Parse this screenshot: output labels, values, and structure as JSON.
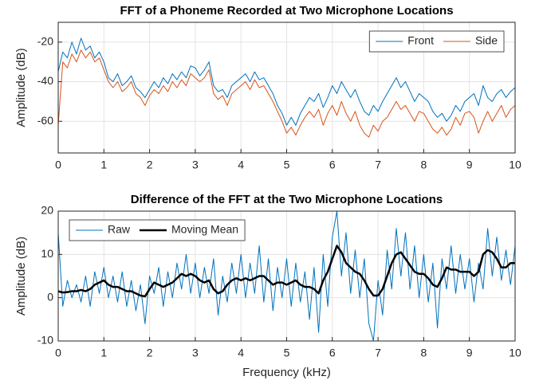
{
  "chart_data": [
    {
      "type": "line",
      "title": "FFT of a Phoneme Recorded at Two Microphone Locations",
      "y_label": "Amplitude (dB)",
      "x": [
        0,
        0.1,
        0.2,
        0.3,
        0.4,
        0.5,
        0.6,
        0.7,
        0.8,
        0.9,
        1,
        1.1,
        1.2,
        1.3,
        1.4,
        1.5,
        1.6,
        1.7,
        1.8,
        1.9,
        2,
        2.1,
        2.2,
        2.3,
        2.4,
        2.5,
        2.6,
        2.7,
        2.8,
        2.9,
        3,
        3.1,
        3.2,
        3.3,
        3.4,
        3.5,
        3.6,
        3.7,
        3.8,
        3.9,
        4,
        4.1,
        4.2,
        4.3,
        4.4,
        4.5,
        4.6,
        4.7,
        4.8,
        4.9,
        5,
        5.1,
        5.2,
        5.3,
        5.4,
        5.5,
        5.6,
        5.7,
        5.8,
        5.9,
        6,
        6.1,
        6.2,
        6.3,
        6.4,
        6.5,
        6.6,
        6.7,
        6.8,
        6.9,
        7,
        7.1,
        7.2,
        7.3,
        7.4,
        7.5,
        7.6,
        7.7,
        7.8,
        7.9,
        8,
        8.1,
        8.2,
        8.3,
        8.4,
        8.5,
        8.6,
        8.7,
        8.8,
        8.9,
        9,
        9.1,
        9.2,
        9.3,
        9.4,
        9.5,
        9.6,
        9.7,
        9.8,
        9.9,
        10
      ],
      "series": [
        {
          "name": "Front",
          "color": "#0072bd",
          "values": [
            -35,
            -25,
            -28,
            -20,
            -26,
            -18,
            -24,
            -22,
            -28,
            -25,
            -30,
            -38,
            -40,
            -36,
            -42,
            -40,
            -37,
            -43,
            -45,
            -48,
            -44,
            -40,
            -43,
            -38,
            -41,
            -36,
            -39,
            -35,
            -38,
            -32,
            -33,
            -37,
            -34,
            -30,
            -42,
            -45,
            -44,
            -48,
            -42,
            -40,
            -38,
            -36,
            -40,
            -35,
            -39,
            -38,
            -42,
            -46,
            -52,
            -56,
            -62,
            -58,
            -62,
            -56,
            -52,
            -48,
            -50,
            -46,
            -53,
            -48,
            -42,
            -46,
            -40,
            -44,
            -48,
            -44,
            -50,
            -55,
            -57,
            -52,
            -55,
            -50,
            -46,
            -42,
            -38,
            -43,
            -40,
            -45,
            -50,
            -46,
            -48,
            -50,
            -55,
            -58,
            -56,
            -60,
            -57,
            -52,
            -55,
            -50,
            -48,
            -46,
            -52,
            -42,
            -48,
            -50,
            -46,
            -44,
            -48,
            -45,
            -43
          ]
        },
        {
          "name": "Side",
          "color": "#d95319",
          "values": [
            -62,
            -30,
            -33,
            -26,
            -30,
            -24,
            -28,
            -25,
            -30,
            -28,
            -34,
            -40,
            -43,
            -40,
            -45,
            -43,
            -40,
            -46,
            -48,
            -52,
            -47,
            -44,
            -46,
            -42,
            -45,
            -40,
            -43,
            -39,
            -42,
            -36,
            -38,
            -40,
            -38,
            -34,
            -46,
            -49,
            -47,
            -52,
            -46,
            -44,
            -42,
            -40,
            -44,
            -39,
            -43,
            -42,
            -46,
            -50,
            -55,
            -60,
            -66,
            -63,
            -67,
            -62,
            -58,
            -55,
            -58,
            -54,
            -62,
            -56,
            -52,
            -57,
            -50,
            -56,
            -60,
            -55,
            -62,
            -66,
            -68,
            -62,
            -65,
            -60,
            -58,
            -54,
            -50,
            -54,
            -52,
            -56,
            -60,
            -55,
            -56,
            -60,
            -64,
            -66,
            -63,
            -67,
            -64,
            -58,
            -62,
            -56,
            -55,
            -58,
            -66,
            -60,
            -55,
            -60,
            -56,
            -52,
            -58,
            -54,
            -52
          ]
        }
      ],
      "xlim": [
        0,
        10
      ],
      "xticks": [
        0,
        1,
        2,
        3,
        4,
        5,
        6,
        7,
        8,
        9,
        10
      ],
      "ylim": [
        -76,
        -10
      ],
      "yticks": [
        -60,
        -40,
        -20
      ],
      "grid": true,
      "legend": "northeast"
    },
    {
      "type": "line",
      "title": "Difference of the FFT at the Two Microphone Locations",
      "x_label": "Frequency (kHz)",
      "y_label": "Amplitude (dB)",
      "x": [
        0,
        0.1,
        0.2,
        0.3,
        0.4,
        0.5,
        0.6,
        0.7,
        0.8,
        0.9,
        1,
        1.1,
        1.2,
        1.3,
        1.4,
        1.5,
        1.6,
        1.7,
        1.8,
        1.9,
        2,
        2.1,
        2.2,
        2.3,
        2.4,
        2.5,
        2.6,
        2.7,
        2.8,
        2.9,
        3,
        3.1,
        3.2,
        3.3,
        3.4,
        3.5,
        3.6,
        3.7,
        3.8,
        3.9,
        4,
        4.1,
        4.2,
        4.3,
        4.4,
        4.5,
        4.6,
        4.7,
        4.8,
        4.9,
        5,
        5.1,
        5.2,
        5.3,
        5.4,
        5.5,
        5.6,
        5.7,
        5.8,
        5.9,
        6,
        6.1,
        6.2,
        6.3,
        6.4,
        6.5,
        6.6,
        6.7,
        6.8,
        6.9,
        7,
        7.1,
        7.2,
        7.3,
        7.4,
        7.5,
        7.6,
        7.7,
        7.8,
        7.9,
        8,
        8.1,
        8.2,
        8.3,
        8.4,
        8.5,
        8.6,
        8.7,
        8.8,
        8.9,
        9,
        9.1,
        9.2,
        9.3,
        9.4,
        9.5,
        9.6,
        9.7,
        9.8,
        9.9,
        10
      ],
      "series": [
        {
          "name": "Raw",
          "color": "#0072bd",
          "width": 1,
          "values": [
            15,
            -2,
            4,
            0,
            3,
            -1,
            5,
            -2,
            6,
            1,
            7,
            0,
            5,
            -1,
            6,
            -2,
            4,
            -3,
            3,
            -6,
            5,
            1,
            7,
            -2,
            6,
            0,
            8,
            2,
            10,
            1,
            8,
            0,
            7,
            1,
            9,
            -4,
            5,
            -1,
            8,
            1,
            10,
            0,
            8,
            1,
            12,
            -1,
            9,
            -3,
            7,
            0,
            9,
            -2,
            8,
            -1,
            6,
            -5,
            7,
            -8,
            10,
            -2,
            14,
            20,
            5,
            15,
            1,
            11,
            0,
            9,
            -6,
            -10,
            4,
            -4,
            11,
            2,
            16,
            5,
            15,
            2,
            12,
            0,
            10,
            -1,
            8,
            -7,
            9,
            2,
            12,
            1,
            10,
            2,
            9,
            -1,
            8,
            2,
            16,
            5,
            14,
            4,
            11,
            3,
            12
          ]
        },
        {
          "name": "Moving Mean",
          "color": "#000000",
          "width": 2.5,
          "values": [
            1.5,
            1.2,
            1.3,
            1.5,
            1.5,
            1.8,
            1.5,
            2,
            3,
            3.5,
            4,
            3,
            2.5,
            2.5,
            2,
            1.5,
            1.5,
            1,
            0.5,
            0.3,
            2,
            3.5,
            3,
            2.5,
            3,
            3.5,
            4.5,
            5.5,
            5,
            5.5,
            5,
            4,
            3.5,
            4,
            2,
            1,
            1.5,
            3,
            4,
            4.5,
            4,
            4.5,
            4,
            4.5,
            5,
            5,
            4,
            3,
            3.5,
            3.5,
            3,
            3.5,
            4,
            3,
            2.5,
            2.5,
            2,
            1,
            4,
            6,
            9,
            12,
            10.5,
            8,
            7,
            6,
            5.5,
            4,
            2,
            0.5,
            0.5,
            2,
            5,
            8,
            10,
            10.5,
            9,
            7.5,
            6,
            5.5,
            5.5,
            4.5,
            3,
            2.5,
            4.5,
            7,
            6.5,
            6.5,
            6,
            6,
            6,
            5,
            6,
            10,
            11,
            10.5,
            9,
            7,
            7,
            8,
            8
          ]
        }
      ],
      "xlim": [
        0,
        10
      ],
      "xticks": [
        0,
        1,
        2,
        3,
        4,
        5,
        6,
        7,
        8,
        9,
        10
      ],
      "ylim": [
        -10,
        20
      ],
      "yticks": [
        -10,
        0,
        10,
        20
      ],
      "grid": true,
      "legend": "northwest"
    }
  ]
}
